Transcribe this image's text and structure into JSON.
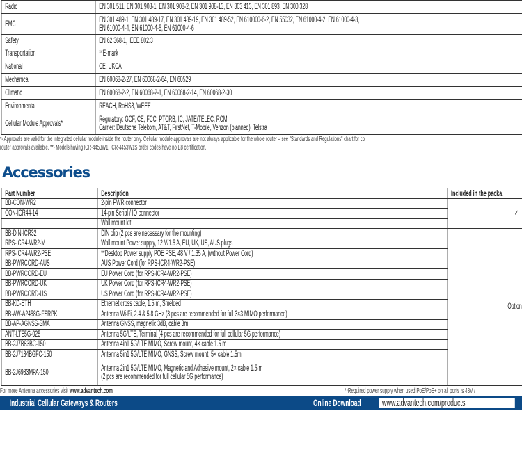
{
  "standards": [
    {
      "label": "Radio",
      "value": [
        "EN 301 511, EN 301 908-1, EN 301 908-2, EN 301 908-13, EN 303 413, EN 301 893, EN 300 328"
      ]
    },
    {
      "label": "EMC",
      "value": [
        "EN 301 489-1, EN 301 489-17, EN 301 489-19, EN 301 489-52, EN 610000-6-2, EN 55032, EN 61000-4-2, EN 61000-4-3,",
        "EN 61000-4-4, EN 61000-4-5, EN 61000-4-6"
      ]
    },
    {
      "label": "Safety",
      "value": [
        "EN 62 368-1, IEEE 802.3"
      ]
    },
    {
      "label": "Transportation",
      "value": [
        "**E-mark"
      ]
    },
    {
      "label": "National",
      "value": [
        "CE, UKCA"
      ]
    },
    {
      "label": "Mechanical",
      "value": [
        "EN 60068-2-27, EN 60068-2-64, EN 60529"
      ]
    },
    {
      "label": "Climatic",
      "value": [
        "EN 60068-2-2, EN 60068-2-1, EN 60068-2-14, EN 60068-2-30"
      ]
    },
    {
      "label": "Environmental",
      "value": [
        "REACH, RoHS3, WEEE"
      ]
    },
    {
      "label": "Cellular Module Approvals*",
      "value": [
        "Regulatory: GCF, CE, FCC, PTCRB, IC, JATE/TELEC, RCM",
        "Carrier: Deutsche Telekom, AT&T, FirstNet, T-Mobile, Verizon (planned), Telstra"
      ]
    }
  ],
  "footnote": [
    "*- Approvals are valid for the integrated cellular module inside the router only. Cellular module approvals are not always applicable for the whole router – see \"Standards and Regulations\" chart for co",
    "router approvals available. **- Models having ICR-4453W1, ICR-4453W1S order codes have no E8 certification."
  ],
  "accessories": {
    "title": "Accessories",
    "headers": [
      "Part Number",
      "Description",
      "Included in the packa"
    ],
    "included_mark": "✓",
    "optional_label": "Optional",
    "rows": [
      [
        "BB-CON-WR2",
        "2-pin PWR connector"
      ],
      [
        "CON-ICR44-14",
        "14-pin Serial / IO connector"
      ],
      [
        "",
        "Wall mount kit"
      ],
      [
        "BB-DIN-ICR32",
        "DIN clip (2 pcs are necessary for the mounting)"
      ],
      [
        "RPS-ICR4-WR2-M",
        "Wall mount Power supply, 12 V/1.5 A, EU, UK, US, AUS plugs"
      ],
      [
        "RPS-ICR4-WR2-PSE",
        "**Desktop Power supply POE PSE, 48 V / 1.35 A, (without Power Cord)"
      ],
      [
        "BB-PWRCORD-AUS",
        "AUS Power Cord (for RPS-ICR4-WR2-PSE)"
      ],
      [
        "BB-PWRCORD-EU",
        "EU Power Cord (for RPS-ICR4-WR2-PSE)"
      ],
      [
        "BB-PWRCORD-UK",
        "UK Power Cord (for RPS-ICR4-WR2-PSE)"
      ],
      [
        "BB-PWRCORD-US",
        "US Power Cord (for RPS-ICR4-WR2-PSE)"
      ],
      [
        "BB-KD-ETH",
        "Ethernet cross cable, 1.5 m, Shielded"
      ],
      [
        "BB-AW-A2458G-FSRPK",
        "Antenna Wi-Fi, 2.4 & 5.8 GHz (3 pcs are recommended for full 3×3 MIMO performance)"
      ],
      [
        "BB-AP-AGNSS-SMA",
        "Antenna GNSS, magnetic 3dB, cable 3m"
      ],
      [
        "ANT-LTE5G-025",
        "Antenna 5G/LTE, Terminal (4 pcs are recommended for full cellular 5G performance)"
      ],
      [
        "BB-2J7B83BC-150",
        "Antenna 4in1 5G/LTE MIMO, Screw mount, 4× cable 1.5 m"
      ],
      [
        "BB-2J7184BGFC-150",
        "Antenna 5in1 5G/LTE MIMO, GNSS, Screw mount, 5× cable 1.5m"
      ],
      [
        "BB-2J6983MPA-150",
        "Antenna 2in1 5G/LTE MIMO, Magnetic and Adhesive mount, 2× cable 1.5 m",
        "(2 pcs are recommended for full cellular 5G performance)"
      ]
    ],
    "note_left_prefix": "For more Antenna accessories visit ",
    "note_left_link": "www.advantech.com",
    "note_right": "**Required power supply when used PoE/PoE+ on all ports is 48V /"
  },
  "footer": {
    "title": "Industrial Cellular Gateways & Routers",
    "download_label": "Online Download",
    "download_url": "www.advantech.com/products",
    "bar_color": "#0c4a87"
  }
}
